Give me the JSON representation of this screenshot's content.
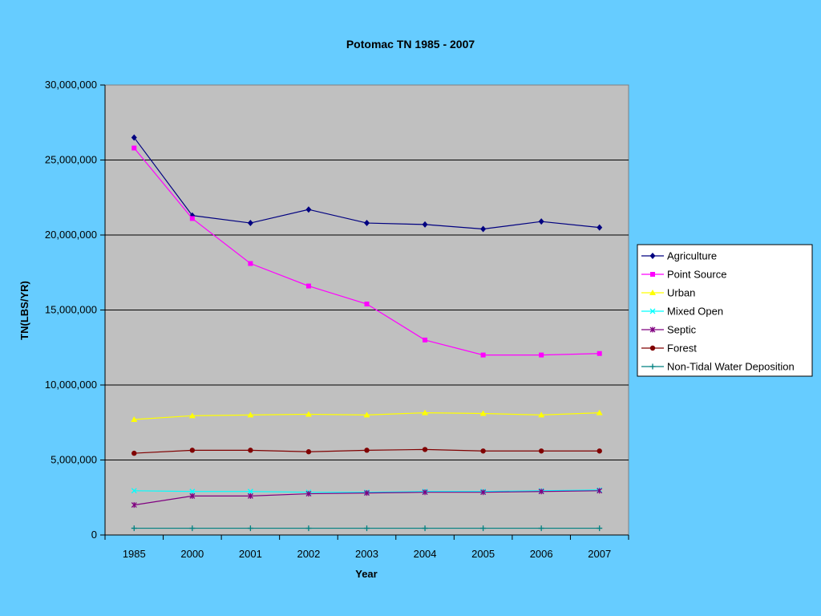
{
  "chart_data": {
    "type": "line",
    "title": "Potomac TN 1985 - 2007",
    "xlabel": "Year",
    "ylabel": "TN(LBS/YR)",
    "categories": [
      "1985",
      "2000",
      "2001",
      "2002",
      "2003",
      "2004",
      "2005",
      "2006",
      "2007"
    ],
    "ylim": [
      0,
      30000000
    ],
    "yticks": [
      0,
      5000000,
      10000000,
      15000000,
      20000000,
      25000000,
      30000000
    ],
    "ytick_labels": [
      "0",
      "5,000,000",
      "10,000,000",
      "15,000,000",
      "20,000,000",
      "25,000,000",
      "30,000,000"
    ],
    "grid": true,
    "legend_position": "right",
    "series": [
      {
        "name": "Agriculture",
        "color": "#000080",
        "marker": "diamond",
        "values": [
          26500000,
          21300000,
          20800000,
          21700000,
          20800000,
          20700000,
          20400000,
          20900000,
          20500000
        ]
      },
      {
        "name": "Point Source",
        "color": "#ff00ff",
        "marker": "square",
        "values": [
          25800000,
          21100000,
          18100000,
          16600000,
          15400000,
          13000000,
          12000000,
          12000000,
          12100000
        ]
      },
      {
        "name": "Urban",
        "color": "#ffff00",
        "marker": "triangle",
        "values": [
          7700000,
          7950000,
          8000000,
          8050000,
          8000000,
          8150000,
          8100000,
          8000000,
          8150000
        ]
      },
      {
        "name": "Mixed Open",
        "color": "#00ffff",
        "marker": "x",
        "values": [
          2950000,
          2900000,
          2900000,
          2850000,
          2850000,
          2900000,
          2900000,
          2950000,
          3000000
        ]
      },
      {
        "name": "Septic",
        "color": "#800080",
        "marker": "star",
        "values": [
          2000000,
          2600000,
          2600000,
          2750000,
          2800000,
          2850000,
          2850000,
          2900000,
          2950000
        ]
      },
      {
        "name": "Forest",
        "color": "#800000",
        "marker": "circle",
        "values": [
          5450000,
          5650000,
          5650000,
          5550000,
          5650000,
          5700000,
          5600000,
          5600000,
          5600000
        ]
      },
      {
        "name": "Non-Tidal Water Deposition",
        "color": "#008080",
        "marker": "plus",
        "values": [
          450000,
          450000,
          450000,
          450000,
          450000,
          450000,
          450000,
          450000,
          450000
        ]
      }
    ]
  }
}
